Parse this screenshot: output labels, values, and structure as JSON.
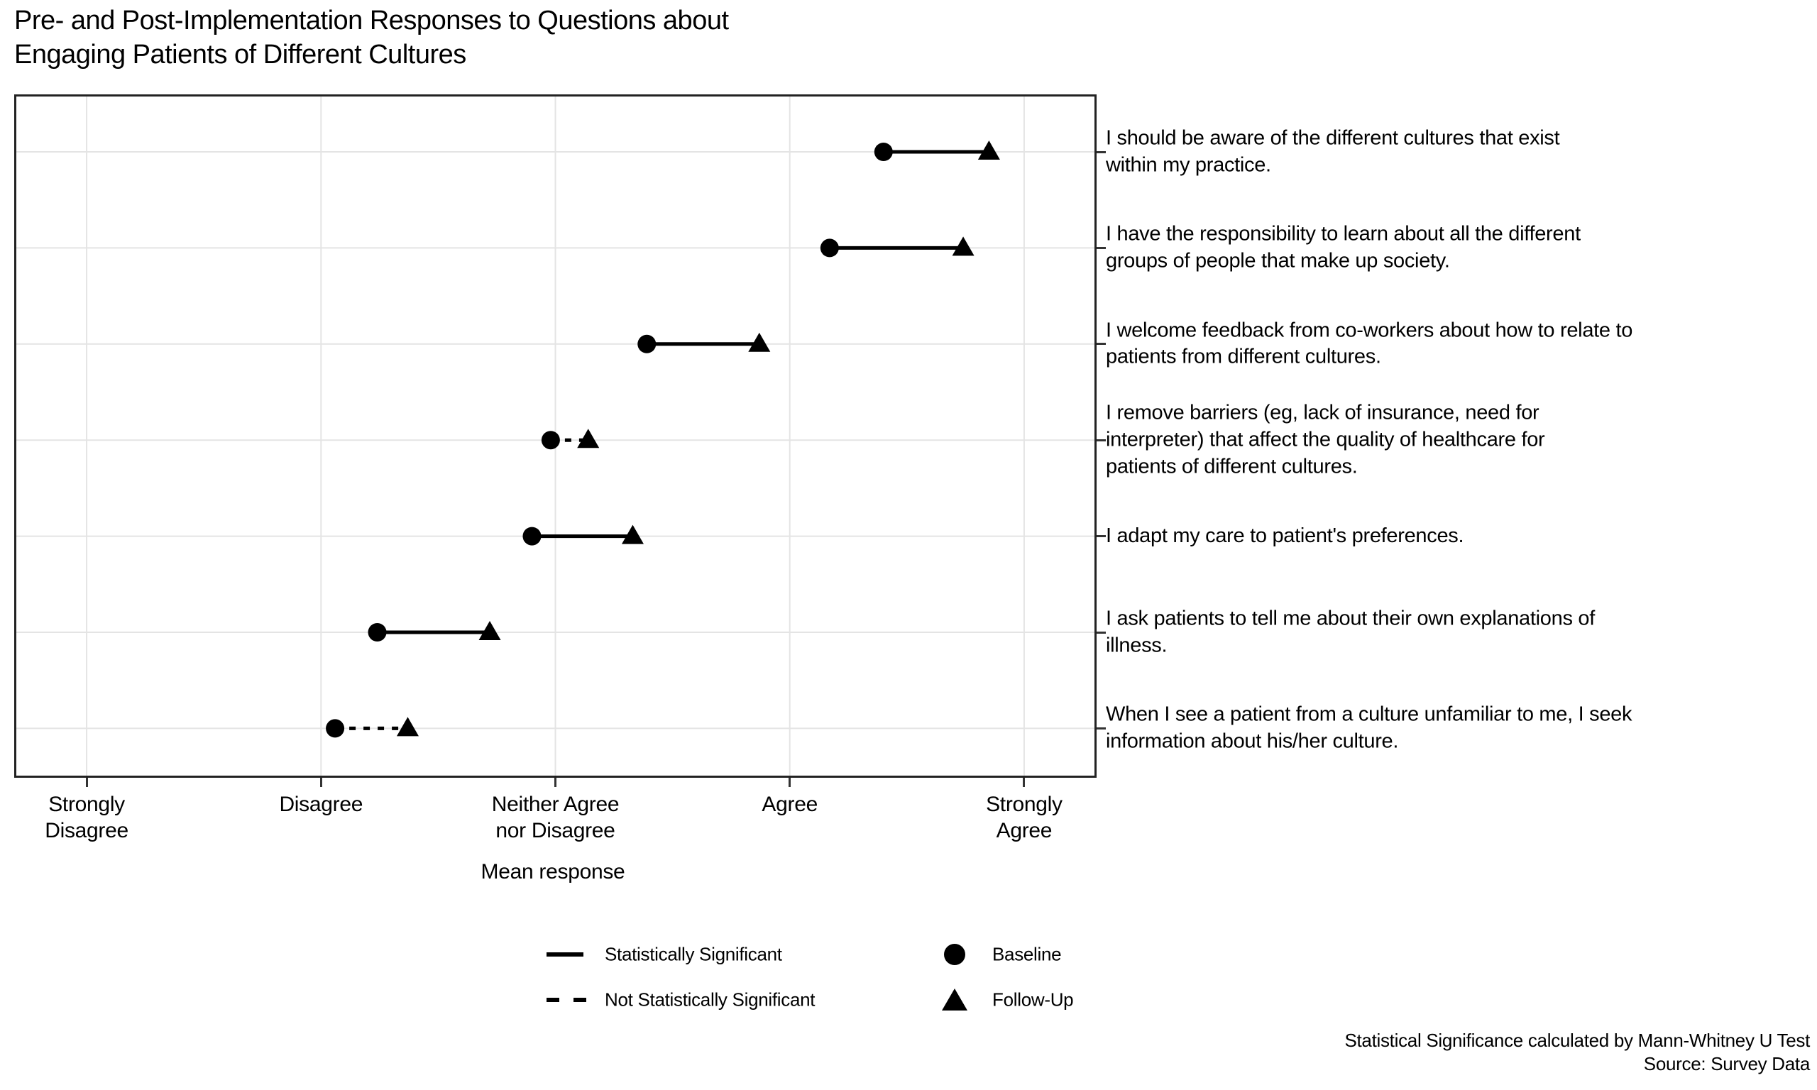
{
  "title": "Pre- and Post-Implementation Responses to Questions about\nEngaging Patients of Different Cultures",
  "colors": {
    "foreground": "#000000",
    "gridline": "#e4e4e4",
    "panel_border": "#222222",
    "background": "#ffffff"
  },
  "legend": {
    "significant_label": "Statistically Significant",
    "not_significant_label": "Not Statistically Significant",
    "baseline_label": "Baseline",
    "followup_label": "Follow-Up"
  },
  "chart_data": {
    "type": "dumbbell",
    "title": "Pre- and Post-Implementation Responses to Questions about Engaging Patients of Different Cultures",
    "xlabel": "Mean response",
    "x_axis": {
      "label": "Mean response",
      "tick_values": [
        1,
        2,
        3,
        4,
        5
      ],
      "tick_labels": [
        "Strongly\nDisagree",
        "Disagree",
        "Neither Agree\nnor Disagree",
        "Agree",
        "Strongly\nAgree"
      ],
      "range": [
        0.7,
        5.3
      ],
      "grid": true
    },
    "series": [
      {
        "name": "Baseline",
        "marker": "circle"
      },
      {
        "name": "Follow-Up",
        "marker": "triangle"
      }
    ],
    "line_styles": {
      "solid": "Statistically Significant",
      "dashed": "Not Statistically Significant"
    },
    "rows": [
      {
        "question": "I should be aware of the different cultures that exist\nwithin my practice.",
        "baseline": 4.4,
        "followup": 4.85,
        "significant": true
      },
      {
        "question": "I have the responsibility to learn about all the different\ngroups of people that make up society.",
        "baseline": 4.17,
        "followup": 4.74,
        "significant": true
      },
      {
        "question": "I welcome feedback from co-workers about how to relate to\npatients from different cultures.",
        "baseline": 3.39,
        "followup": 3.87,
        "significant": true
      },
      {
        "question": "I remove barriers (eg, lack of insurance, need for\ninterpreter) that affect the quality of healthcare for\npatients of different cultures.",
        "baseline": 2.98,
        "followup": 3.14,
        "significant": false
      },
      {
        "question": "I adapt my care to patient's preferences.",
        "baseline": 2.9,
        "followup": 3.33,
        "significant": true
      },
      {
        "question": "I ask patients to tell me about their own explanations of\nillness.",
        "baseline": 2.24,
        "followup": 2.72,
        "significant": true
      },
      {
        "question": "When I see a patient from a culture unfamiliar to me, I seek\ninformation about his/her culture.",
        "baseline": 2.06,
        "followup": 2.37,
        "significant": false
      }
    ],
    "caption": [
      "Statistical Significance calculated by Mann-Whitney U Test",
      "Source: Survey Data"
    ]
  }
}
